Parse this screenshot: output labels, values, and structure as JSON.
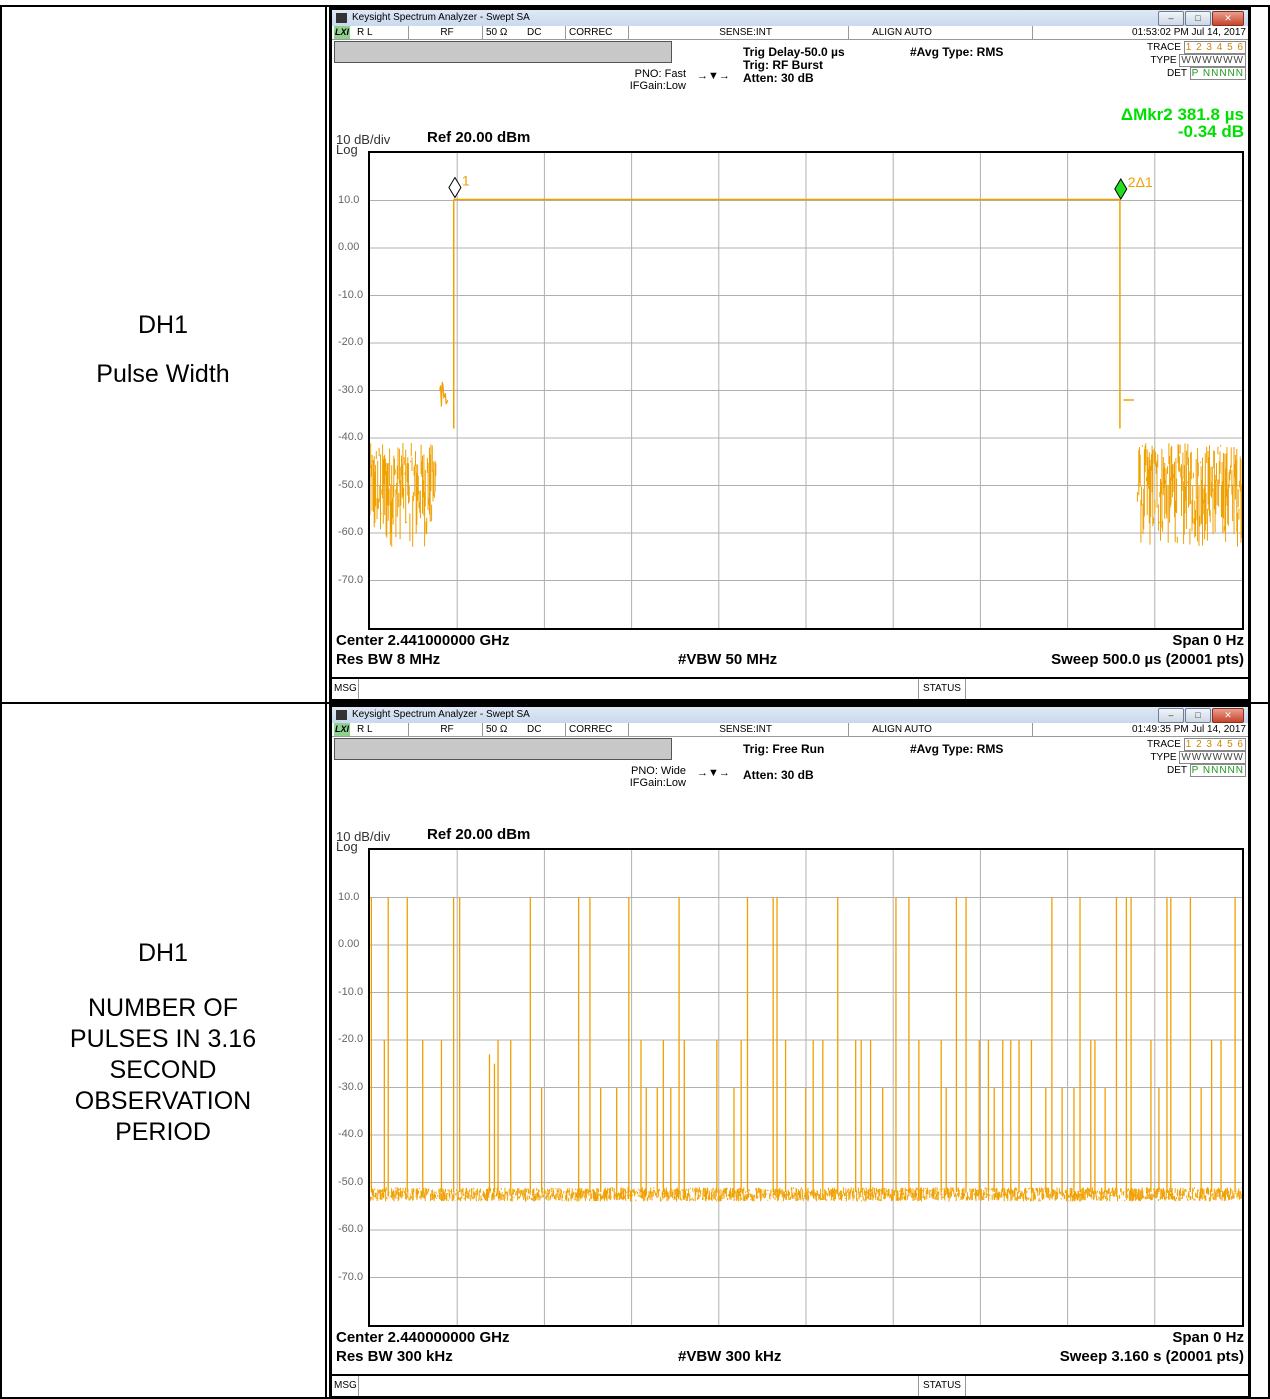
{
  "rows": [
    {
      "label": [
        "DH1",
        "",
        "Pulse Width"
      ],
      "analyzer": {
        "window_title": "Keysight Spectrum Analyzer - Swept SA",
        "status": {
          "lxi": "LXI",
          "rl": "R L",
          "rf": "RF",
          "impedance": "50 Ω",
          "coupling": "DC",
          "correc": "CORREC",
          "sense": "SENSE:INT",
          "align": "ALIGN AUTO",
          "timestamp": "01:53:02 PM Jul 14, 2017"
        },
        "pno": "PNO: Fast",
        "ifgain": "IFGain:Low",
        "trig_line1": "Trig Delay-50.0 µs",
        "trig_line2": "Trig: RF Burst",
        "atten": "Atten: 30 dB",
        "avg_type": "#Avg Type: RMS",
        "trace_label": "TRACE",
        "trace_nums": "1 2 3 4 5 6",
        "type_label": "TYPE",
        "type_val": "WWWWWW",
        "det_label": "DET",
        "det_val": "P NNNNN",
        "marker_line1": "ΔMkr2 381.8 µs",
        "marker_line2": "-0.34 dB",
        "scale": "10 dB/div",
        "log": "Log",
        "ref": "Ref 20.00 dBm",
        "marker1_label": "1",
        "marker2_label": "2Δ1",
        "center": "Center 2.441000000 GHz",
        "span": "Span 0 Hz",
        "res_bw": "Res BW 8 MHz",
        "vbw": "#VBW 50 MHz",
        "sweep": "Sweep  500.0 µs (20001 pts)",
        "msg": "MSG",
        "status_label": "STATUS"
      },
      "chart_data": {
        "type": "line",
        "xlabel": "",
        "ylabel": "",
        "y_unit": "dBm",
        "ylim": [
          -80,
          20
        ],
        "ytick_labels": [
          "10.0",
          "0.00",
          "-10.0",
          "-20.0",
          "-30.0",
          "-40.0",
          "-50.0",
          "-60.0",
          "-70.0"
        ],
        "ytick_values": [
          10,
          0,
          -10,
          -20,
          -30,
          -40,
          -50,
          -60,
          -70
        ],
        "xlim": [
          0,
          500
        ],
        "x_unit": "µs",
        "grid": true,
        "segments": [
          {
            "x": [
              0,
              38
            ],
            "y_noise": [
              -63,
              -41
            ]
          },
          {
            "x": [
              40,
              45
            ],
            "y": [
              -28,
              -35
            ]
          },
          {
            "x": [
              48,
              430
            ],
            "y": 10.2
          },
          {
            "x": [
              432,
              438
            ],
            "y": -32
          },
          {
            "x": [
              440,
              500
            ],
            "y_noise": [
              -63,
              -41
            ]
          }
        ],
        "markers": [
          {
            "name": "1",
            "x": 48.7,
            "y": 10.2
          },
          {
            "name": "2Δ1",
            "x": 430.5,
            "y": 9.9
          }
        ],
        "series_color": "#f0a000"
      }
    },
    {
      "label": [
        "DH1",
        "",
        "NUMBER OF",
        "PULSES IN 3.16",
        "SECOND",
        "OBSERVATION",
        "PERIOD"
      ],
      "analyzer": {
        "window_title": "Keysight Spectrum Analyzer - Swept SA",
        "status": {
          "lxi": "LXI",
          "rl": "R L",
          "rf": "RF",
          "impedance": "50 Ω",
          "coupling": "DC",
          "correc": "CORREC",
          "sense": "SENSE:INT",
          "align": "ALIGN AUTO",
          "timestamp": "01:49:35 PM Jul 14, 2017"
        },
        "pno": "PNO: Wide",
        "ifgain": "IFGain:Low",
        "trig_line1": "Trig: Free Run",
        "trig_line2": "",
        "atten": "Atten: 30 dB",
        "avg_type": "#Avg Type: RMS",
        "trace_label": "TRACE",
        "trace_nums": "1 2 3 4 5 6",
        "type_label": "TYPE",
        "type_val": "WWWWWW",
        "det_label": "DET",
        "det_val": "P NNNNN",
        "marker_line1": "",
        "marker_line2": "",
        "scale": "10 dB/div",
        "log": "Log",
        "ref": "Ref 20.00 dBm",
        "marker1_label": "",
        "marker2_label": "",
        "center": "Center 2.440000000 GHz",
        "span": "Span 0 Hz",
        "res_bw": "Res BW 300 kHz",
        "vbw": "#VBW 300 kHz",
        "sweep": "Sweep  3.160 s (20001 pts)",
        "msg": "MSG",
        "status_label": "STATUS"
      },
      "chart_data": {
        "type": "line",
        "xlabel": "",
        "ylabel": "",
        "y_unit": "dBm",
        "ylim": [
          -80,
          20
        ],
        "ytick_labels": [
          "10.0",
          "0.00",
          "-10.0",
          "-20.0",
          "-30.0",
          "-40.0",
          "-50.0",
          "-60.0",
          "-70.0"
        ],
        "ytick_values": [
          10,
          0,
          -10,
          -20,
          -30,
          -40,
          -50,
          -60,
          -70
        ],
        "xlim": [
          0,
          3.16
        ],
        "x_unit": "s",
        "grid": true,
        "noise_floor": [
          -54,
          -51
        ],
        "pulses": [
          {
            "x": 0.005,
            "y": 10
          },
          {
            "x": 0.052,
            "y": -20
          },
          {
            "x": 0.066,
            "y": 10
          },
          {
            "x": 0.135,
            "y": 10
          },
          {
            "x": 0.191,
            "y": -20
          },
          {
            "x": 0.259,
            "y": -20
          },
          {
            "x": 0.303,
            "y": 10
          },
          {
            "x": 0.325,
            "y": 10
          },
          {
            "x": 0.433,
            "y": -23
          },
          {
            "x": 0.451,
            "y": -25
          },
          {
            "x": 0.464,
            "y": -20
          },
          {
            "x": 0.51,
            "y": -20
          },
          {
            "x": 0.581,
            "y": 10
          },
          {
            "x": 0.622,
            "y": -30
          },
          {
            "x": 0.756,
            "y": 10
          },
          {
            "x": 0.797,
            "y": 10
          },
          {
            "x": 0.836,
            "y": -30
          },
          {
            "x": 0.894,
            "y": -30
          },
          {
            "x": 0.938,
            "y": 10
          },
          {
            "x": 0.982,
            "y": -20
          },
          {
            "x": 1.001,
            "y": -30
          },
          {
            "x": 1.041,
            "y": -30
          },
          {
            "x": 1.063,
            "y": -20
          },
          {
            "x": 1.09,
            "y": -30
          },
          {
            "x": 1.12,
            "y": 10
          },
          {
            "x": 1.139,
            "y": -20
          },
          {
            "x": 1.257,
            "y": -20
          },
          {
            "x": 1.319,
            "y": -30
          },
          {
            "x": 1.345,
            "y": -20
          },
          {
            "x": 1.368,
            "y": 10
          },
          {
            "x": 1.461,
            "y": 10
          },
          {
            "x": 1.475,
            "y": 10
          },
          {
            "x": 1.506,
            "y": -20
          },
          {
            "x": 1.579,
            "y": -30
          },
          {
            "x": 1.606,
            "y": -20
          },
          {
            "x": 1.641,
            "y": -20
          },
          {
            "x": 1.695,
            "y": 10
          },
          {
            "x": 1.76,
            "y": -20
          },
          {
            "x": 1.78,
            "y": -20
          },
          {
            "x": 1.814,
            "y": -20
          },
          {
            "x": 1.858,
            "y": -30
          },
          {
            "x": 1.906,
            "y": 10
          },
          {
            "x": 1.953,
            "y": 10
          },
          {
            "x": 1.989,
            "y": -20
          },
          {
            "x": 2.07,
            "y": -20
          },
          {
            "x": 2.088,
            "y": -30
          },
          {
            "x": 2.125,
            "y": 10
          },
          {
            "x": 2.16,
            "y": 10
          },
          {
            "x": 2.208,
            "y": -20
          },
          {
            "x": 2.241,
            "y": -20
          },
          {
            "x": 2.262,
            "y": -30
          },
          {
            "x": 2.293,
            "y": -20
          },
          {
            "x": 2.322,
            "y": -20
          },
          {
            "x": 2.352,
            "y": -20
          },
          {
            "x": 2.397,
            "y": -20
          },
          {
            "x": 2.449,
            "y": -30
          },
          {
            "x": 2.471,
            "y": 10
          },
          {
            "x": 2.508,
            "y": -30
          },
          {
            "x": 2.551,
            "y": -30
          },
          {
            "x": 2.573,
            "y": 10
          },
          {
            "x": 2.612,
            "y": -20
          },
          {
            "x": 2.627,
            "y": -20
          },
          {
            "x": 2.664,
            "y": -30
          },
          {
            "x": 2.705,
            "y": 10
          },
          {
            "x": 2.741,
            "y": 10
          },
          {
            "x": 2.758,
            "y": 10
          },
          {
            "x": 2.83,
            "y": -20
          },
          {
            "x": 2.859,
            "y": -30
          },
          {
            "x": 2.888,
            "y": 10
          },
          {
            "x": 2.902,
            "y": 10
          },
          {
            "x": 2.973,
            "y": 10
          },
          {
            "x": 3.012,
            "y": -30
          },
          {
            "x": 3.05,
            "y": -20
          },
          {
            "x": 3.084,
            "y": -20
          },
          {
            "x": 3.135,
            "y": 10
          }
        ],
        "series_color": "#f0a000"
      }
    }
  ]
}
